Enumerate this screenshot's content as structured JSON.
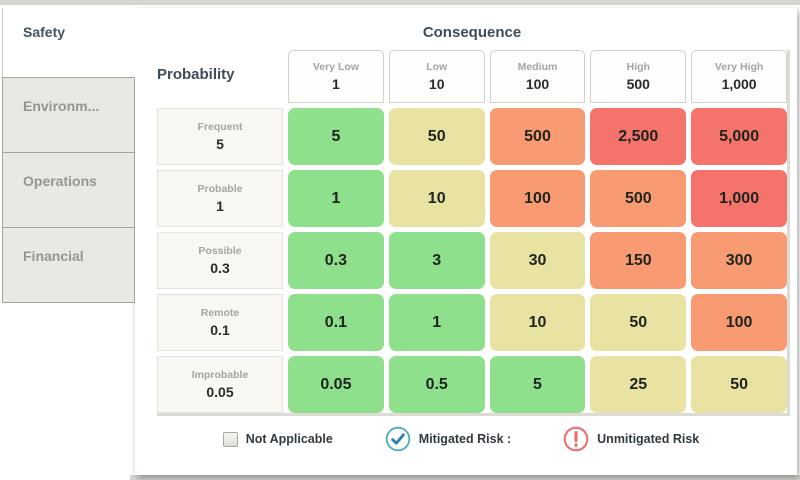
{
  "tabs": [
    {
      "label": "Safety",
      "active": true
    },
    {
      "label": "Environm...",
      "active": false
    },
    {
      "label": "Operations",
      "active": false
    },
    {
      "label": "Financial",
      "active": false
    }
  ],
  "matrix": {
    "consequence_title": "Consequence",
    "probability_title": "Probability",
    "columns": [
      {
        "label": "Very Low",
        "value": "1"
      },
      {
        "label": "Low",
        "value": "10"
      },
      {
        "label": "Medium",
        "value": "100"
      },
      {
        "label": "High",
        "value": "500"
      },
      {
        "label": "Very High",
        "value": "1,000"
      }
    ],
    "rows": [
      {
        "label": "Frequent",
        "value": "5"
      },
      {
        "label": "Probable",
        "value": "1"
      },
      {
        "label": "Possible",
        "value": "0.3"
      },
      {
        "label": "Remote",
        "value": "0.1"
      },
      {
        "label": "Improbable",
        "value": "0.05"
      }
    ],
    "cells": [
      [
        "5",
        "50",
        "500",
        "2,500",
        "5,000"
      ],
      [
        "1",
        "10",
        "100",
        "500",
        "1,000"
      ],
      [
        "0.3",
        "3",
        "30",
        "150",
        "300"
      ],
      [
        "0.1",
        "1",
        "10",
        "50",
        "100"
      ],
      [
        "0.05",
        "0.5",
        "5",
        "25",
        "50"
      ]
    ],
    "cell_levels": [
      [
        "green",
        "yellow",
        "orange",
        "red",
        "red"
      ],
      [
        "green",
        "yellow",
        "orange",
        "orange",
        "red"
      ],
      [
        "green",
        "green",
        "yellow",
        "orange",
        "orange"
      ],
      [
        "green",
        "green",
        "yellow",
        "yellow",
        "orange"
      ],
      [
        "green",
        "green",
        "green",
        "yellow",
        "yellow"
      ]
    ]
  },
  "legend": {
    "not_applicable": "Not Applicable",
    "mitigated": "Mitigated Risk :",
    "unmitigated": "Unmitigated Risk"
  },
  "colors": {
    "green": "#8fe08d",
    "yellow": "#e9e3a3",
    "orange": "#f89b72",
    "red": "#f4736b",
    "mitigated_circle": "#4aabc5",
    "mitigated_check": "#2f7fb6",
    "unmitigated": "#f26a6a"
  }
}
